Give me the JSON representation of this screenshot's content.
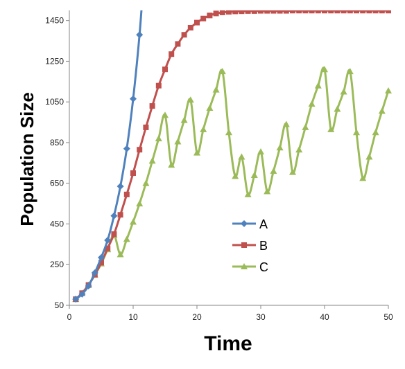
{
  "chart_data": {
    "type": "line",
    "xlabel": "Time",
    "ylabel": "Population Size",
    "xlim": [
      0,
      50
    ],
    "ylim": [
      50,
      1500
    ],
    "x_ticks": [
      0,
      10,
      20,
      30,
      40,
      50
    ],
    "y_ticks": [
      50,
      250,
      450,
      650,
      850,
      1050,
      1250,
      1450
    ],
    "grid": false,
    "legend_position": "center-right",
    "series": [
      {
        "name": "A",
        "color": "#4f81bd",
        "marker": "diamond",
        "x": [
          1,
          2,
          3,
          4,
          5,
          6,
          7,
          8,
          9,
          10,
          11
        ],
        "values": [
          80,
          105,
          145,
          210,
          285,
          370,
          490,
          635,
          820,
          1065,
          1380
        ]
      },
      {
        "name": "B",
        "color": "#c0504d",
        "marker": "square",
        "x": [
          1,
          2,
          3,
          4,
          5,
          6,
          7,
          8,
          9,
          10,
          11,
          12,
          13,
          14,
          15,
          16,
          17,
          18,
          19,
          20,
          21,
          22,
          23,
          24,
          25,
          26,
          27,
          28,
          29,
          30,
          31,
          32,
          33,
          34,
          35,
          36,
          37,
          38,
          39,
          40,
          41,
          42,
          43,
          44,
          45,
          46,
          47,
          48,
          49,
          50
        ],
        "values": [
          80,
          110,
          150,
          200,
          260,
          330,
          400,
          495,
          595,
          700,
          815,
          925,
          1030,
          1130,
          1210,
          1285,
          1335,
          1380,
          1415,
          1440,
          1460,
          1475,
          1485,
          1490,
          1493,
          1495,
          1496,
          1497,
          1497,
          1498,
          1498,
          1498,
          1498,
          1498,
          1499,
          1499,
          1499,
          1499,
          1499,
          1499,
          1499,
          1499,
          1499,
          1499,
          1499,
          1499,
          1499,
          1499,
          1499,
          1499
        ]
      },
      {
        "name": "C",
        "color": "#9bbb59",
        "marker": "triangle",
        "x": [
          1,
          2,
          3,
          4,
          5,
          6,
          7,
          8,
          9,
          10,
          11,
          12,
          13,
          14,
          15,
          16,
          17,
          18,
          19,
          20,
          21,
          22,
          23,
          24,
          25,
          26,
          27,
          28,
          29,
          30,
          31,
          32,
          33,
          34,
          35,
          36,
          37,
          38,
          39,
          40,
          41,
          42,
          43,
          44,
          45,
          46,
          47,
          48,
          49,
          50
        ],
        "values": [
          80,
          110,
          150,
          200,
          255,
          325,
          395,
          300,
          375,
          460,
          550,
          650,
          760,
          870,
          985,
          740,
          855,
          960,
          1060,
          800,
          915,
          1020,
          1110,
          1200,
          900,
          685,
          780,
          595,
          690,
          805,
          610,
          710,
          825,
          940,
          705,
          815,
          925,
          1040,
          1130,
          1210,
          915,
          1015,
          1100,
          1200,
          900,
          675,
          780,
          900,
          1005,
          1105
        ]
      }
    ]
  }
}
